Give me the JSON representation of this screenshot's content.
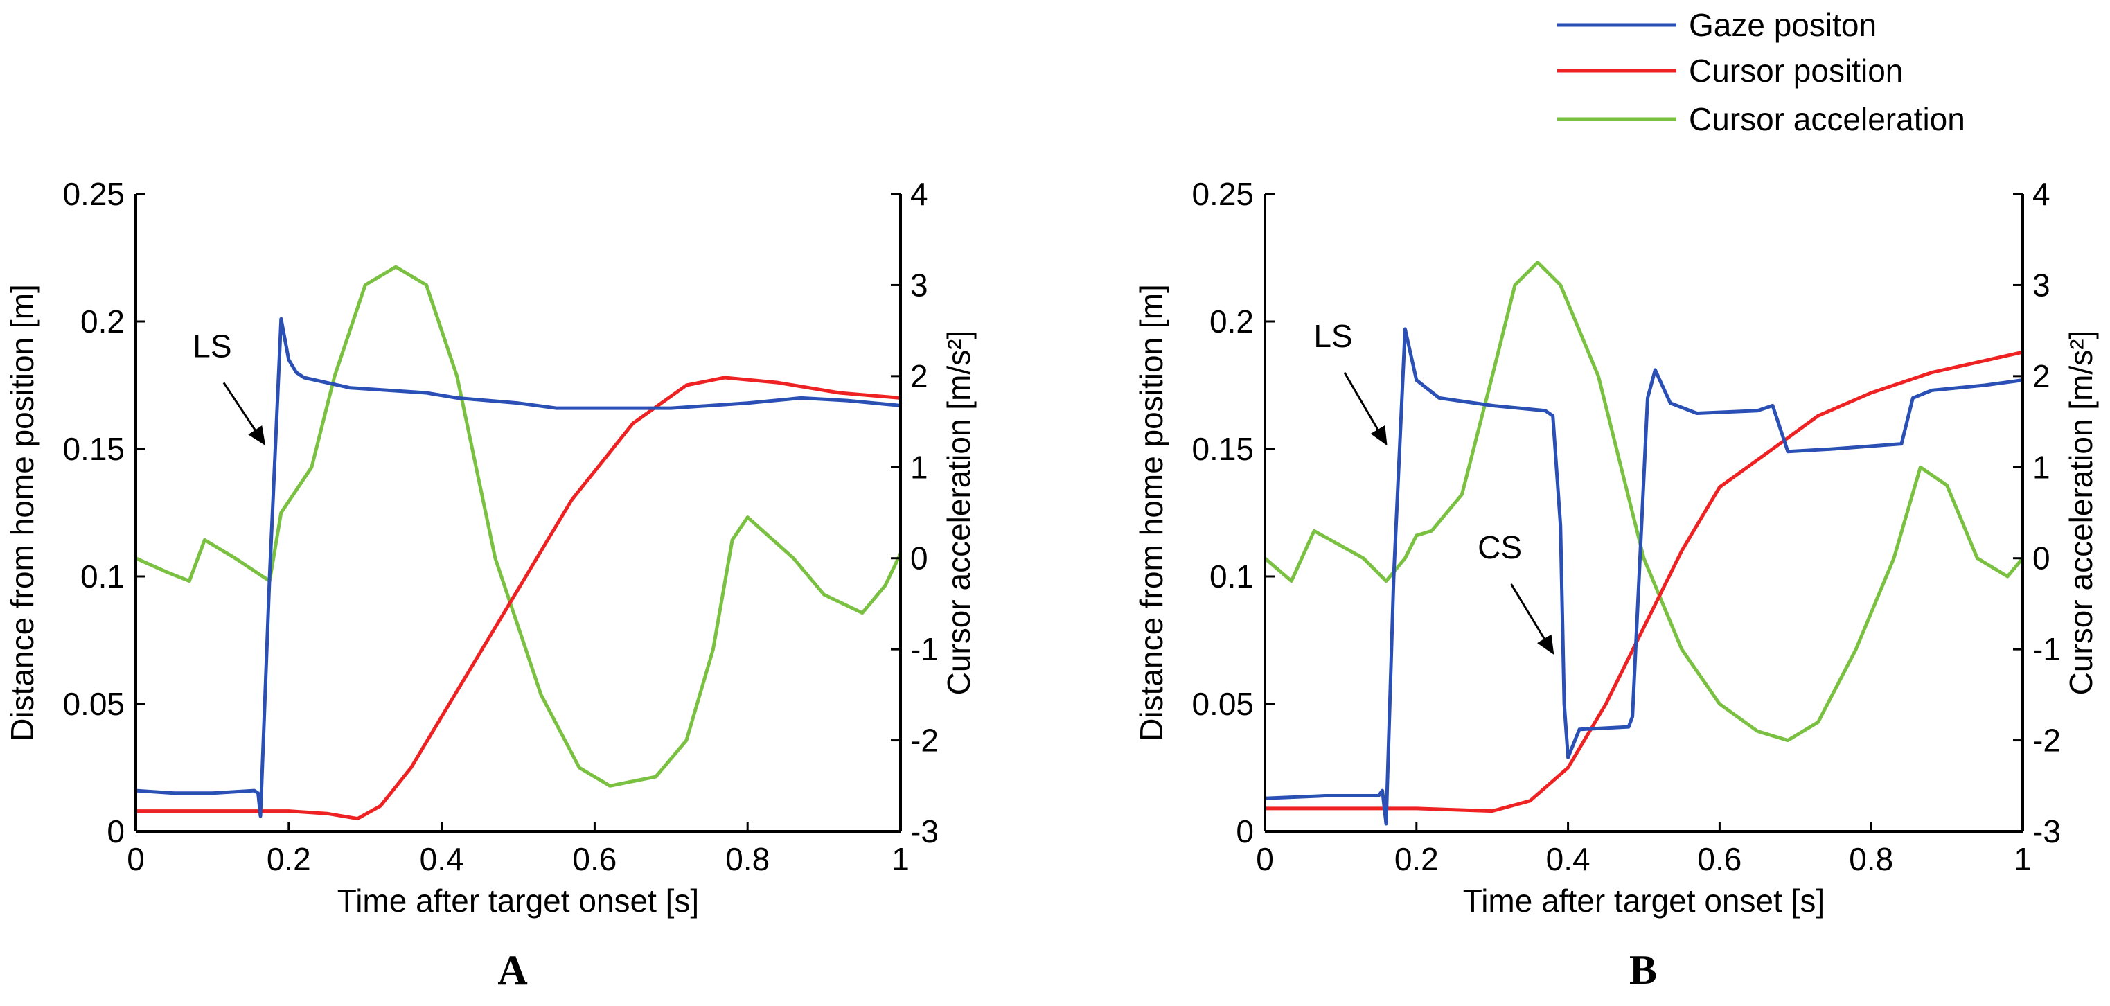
{
  "legend": {
    "placement": "top-right",
    "entries": [
      {
        "label": "Gaze positon",
        "color": "#2a4fb5"
      },
      {
        "label": "Cursor position",
        "color": "#ee2222"
      },
      {
        "label": "Cursor acceleration",
        "color": "#7ac142"
      }
    ]
  },
  "chart_data": [
    {
      "type": "line",
      "panel_label": "A",
      "xlabel": "Time after target onset [s]",
      "ylabel": "Distance from home position [m]",
      "y2label": "Cursor acceleration [m/s²]",
      "xlim": [
        0,
        1
      ],
      "ylim": [
        0,
        0.25
      ],
      "y2lim": [
        -3,
        4
      ],
      "xticks": [
        "0",
        "0.2",
        "0.4",
        "0.6",
        "0.8",
        "1"
      ],
      "yticks": [
        "0",
        "0.05",
        "0.1",
        "0.15",
        "0.2",
        "0.25"
      ],
      "y2ticks": [
        "-3",
        "-2",
        "-1",
        "0",
        "1",
        "2",
        "3",
        "4"
      ],
      "grid": false,
      "series": [
        {
          "name": "Gaze positon",
          "axis": "left",
          "x": [
            0,
            0.05,
            0.1,
            0.155,
            0.16,
            0.163,
            0.175,
            0.19,
            0.2,
            0.21,
            0.22,
            0.28,
            0.38,
            0.42,
            0.5,
            0.55,
            0.7,
            0.8,
            0.87,
            0.93,
            1
          ],
          "y": [
            0.016,
            0.015,
            0.015,
            0.016,
            0.015,
            0.006,
            0.1,
            0.201,
            0.185,
            0.18,
            0.178,
            0.174,
            0.172,
            0.17,
            0.168,
            0.166,
            0.166,
            0.168,
            0.17,
            0.169,
            0.167
          ]
        },
        {
          "name": "Cursor position",
          "axis": "left",
          "x": [
            0,
            0.1,
            0.2,
            0.25,
            0.29,
            0.32,
            0.36,
            0.41,
            0.49,
            0.57,
            0.65,
            0.72,
            0.77,
            0.84,
            0.92,
            1
          ],
          "y": [
            0.008,
            0.008,
            0.008,
            0.007,
            0.005,
            0.01,
            0.025,
            0.05,
            0.09,
            0.13,
            0.16,
            0.175,
            0.178,
            0.176,
            0.172,
            0.17
          ]
        },
        {
          "name": "Cursor acceleration",
          "axis": "right",
          "x": [
            0,
            0.04,
            0.07,
            0.09,
            0.13,
            0.175,
            0.19,
            0.23,
            0.26,
            0.3,
            0.34,
            0.38,
            0.42,
            0.47,
            0.53,
            0.58,
            0.62,
            0.68,
            0.72,
            0.755,
            0.78,
            0.8,
            0.86,
            0.9,
            0.95,
            0.98,
            1
          ],
          "y": [
            0,
            -0.15,
            -0.25,
            0.2,
            0,
            -0.25,
            0.5,
            1,
            2,
            3,
            3.2,
            3,
            2,
            0,
            -1.5,
            -2.3,
            -2.5,
            -2.4,
            -2.0,
            -1,
            0.2,
            0.45,
            0,
            -0.4,
            -0.6,
            -0.3,
            0.05
          ]
        }
      ],
      "annotations": [
        {
          "text": "LS",
          "x": 0.1,
          "y": 0.186,
          "arrow_from": [
            0.115,
            0.176
          ],
          "arrow_to": [
            0.168,
            0.152
          ]
        }
      ]
    },
    {
      "type": "line",
      "panel_label": "B",
      "xlabel": "Time after target onset [s]",
      "ylabel": "Distance from home position [m]",
      "y2label": "Cursor acceleration [m/s²]",
      "xlim": [
        0,
        1
      ],
      "ylim": [
        0,
        0.25
      ],
      "y2lim": [
        -3,
        4
      ],
      "xticks": [
        "0",
        "0.2",
        "0.4",
        "0.6",
        "0.8",
        "1"
      ],
      "yticks": [
        "0",
        "0.05",
        "0.1",
        "0.15",
        "0.2",
        "0.25"
      ],
      "y2ticks": [
        "-3",
        "-2",
        "-1",
        "0",
        "1",
        "2",
        "3",
        "4"
      ],
      "grid": false,
      "series": [
        {
          "name": "Gaze positon",
          "axis": "left",
          "x": [
            0,
            0.08,
            0.15,
            0.155,
            0.16,
            0.17,
            0.185,
            0.2,
            0.23,
            0.3,
            0.37,
            0.38,
            0.39,
            0.395,
            0.4,
            0.415,
            0.48,
            0.485,
            0.505,
            0.515,
            0.535,
            0.57,
            0.65,
            0.67,
            0.69,
            0.75,
            0.84,
            0.855,
            0.88,
            0.95,
            1
          ],
          "y": [
            0.013,
            0.014,
            0.014,
            0.016,
            0.003,
            0.1,
            0.197,
            0.177,
            0.17,
            0.167,
            0.165,
            0.163,
            0.12,
            0.05,
            0.029,
            0.04,
            0.041,
            0.045,
            0.17,
            0.181,
            0.168,
            0.164,
            0.165,
            0.167,
            0.149,
            0.15,
            0.152,
            0.17,
            0.173,
            0.175,
            0.177
          ]
        },
        {
          "name": "Cursor position",
          "axis": "left",
          "x": [
            0,
            0.1,
            0.2,
            0.3,
            0.35,
            0.4,
            0.45,
            0.5,
            0.55,
            0.6,
            0.67,
            0.73,
            0.8,
            0.88,
            1
          ],
          "y": [
            0.009,
            0.009,
            0.009,
            0.008,
            0.012,
            0.025,
            0.05,
            0.08,
            0.11,
            0.135,
            0.15,
            0.163,
            0.172,
            0.18,
            0.188
          ]
        },
        {
          "name": "Cursor acceleration",
          "axis": "right",
          "x": [
            0,
            0.035,
            0.065,
            0.13,
            0.16,
            0.185,
            0.2,
            0.22,
            0.26,
            0.3,
            0.33,
            0.36,
            0.39,
            0.44,
            0.5,
            0.55,
            0.6,
            0.65,
            0.69,
            0.73,
            0.78,
            0.83,
            0.865,
            0.9,
            0.94,
            0.98,
            1
          ],
          "y": [
            0,
            -0.25,
            0.3,
            0,
            -0.25,
            0,
            0.25,
            0.3,
            0.7,
            2,
            3,
            3.25,
            3,
            2,
            0,
            -1,
            -1.6,
            -1.9,
            -2,
            -1.8,
            -1,
            0,
            1,
            0.8,
            0,
            -0.2,
            0
          ]
        }
      ],
      "annotations": [
        {
          "text": "LS",
          "x": 0.09,
          "y": 0.19,
          "arrow_from": [
            0.105,
            0.18
          ],
          "arrow_to": [
            0.16,
            0.152
          ]
        },
        {
          "text": "CS",
          "x": 0.31,
          "y": 0.107,
          "arrow_from": [
            0.325,
            0.097
          ],
          "arrow_to": [
            0.38,
            0.07
          ]
        }
      ]
    }
  ]
}
